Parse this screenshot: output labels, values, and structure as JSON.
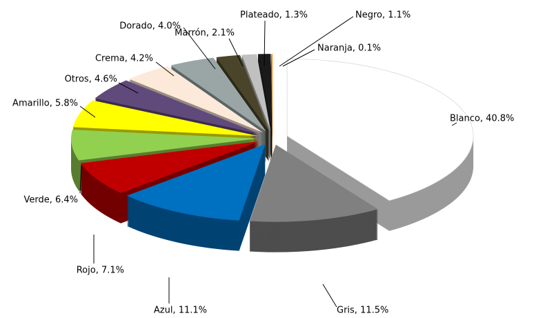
{
  "chart_data": {
    "type": "pie",
    "values": [
      40.8,
      11.5,
      11.1,
      7.1,
      6.4,
      5.8,
      4.6,
      4.2,
      4.0,
      2.1,
      1.3,
      1.1,
      0.1
    ],
    "value_labels": [
      "Blanco, 40.8%",
      "Gris, 11.5%",
      "Azul, 11.1%",
      "Rojo, 7.1%",
      "Verde, 6.4%",
      "Amarillo, 5.8%",
      "Otros, 4.6%",
      "Crema, 4.2%",
      "Dorado, 4.0%",
      "Marrón, 2.1%",
      "Plateado, 1.3%",
      "Negro, 1.1%",
      "Naranja, 0.1%"
    ],
    "colors": [
      "#ffffff",
      "#808080",
      "#0070c0",
      "#c00000",
      "#92d050",
      "#ffff00",
      "#604a7b",
      "#fde9d9",
      "#9aa6a6",
      "#4a452a",
      "#c0c0c0",
      "#1a1a1a",
      "#ff8000"
    ]
  }
}
